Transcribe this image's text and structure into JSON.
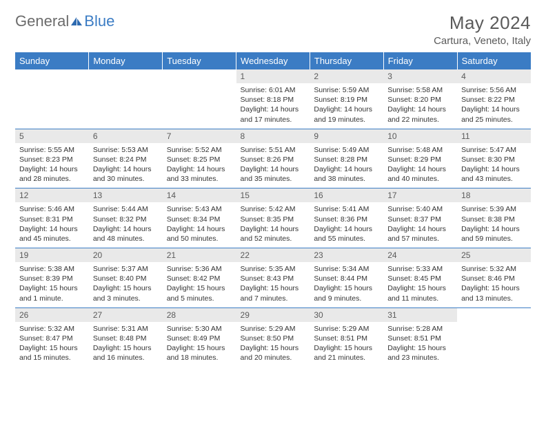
{
  "logo": {
    "text1": "General",
    "text2": "Blue"
  },
  "title": "May 2024",
  "location": "Cartura, Veneto, Italy",
  "colors": {
    "header_bg": "#3b7cc4",
    "daynum_bg": "#e9e9e9",
    "text": "#333333",
    "muted": "#5a5a5a",
    "rule": "#3b7cc4"
  },
  "weekdays": [
    "Sunday",
    "Monday",
    "Tuesday",
    "Wednesday",
    "Thursday",
    "Friday",
    "Saturday"
  ],
  "weeks": [
    [
      {
        "n": "",
        "lines": []
      },
      {
        "n": "",
        "lines": []
      },
      {
        "n": "",
        "lines": []
      },
      {
        "n": "1",
        "lines": [
          "Sunrise: 6:01 AM",
          "Sunset: 8:18 PM",
          "Daylight: 14 hours and 17 minutes."
        ]
      },
      {
        "n": "2",
        "lines": [
          "Sunrise: 5:59 AM",
          "Sunset: 8:19 PM",
          "Daylight: 14 hours and 19 minutes."
        ]
      },
      {
        "n": "3",
        "lines": [
          "Sunrise: 5:58 AM",
          "Sunset: 8:20 PM",
          "Daylight: 14 hours and 22 minutes."
        ]
      },
      {
        "n": "4",
        "lines": [
          "Sunrise: 5:56 AM",
          "Sunset: 8:22 PM",
          "Daylight: 14 hours and 25 minutes."
        ]
      }
    ],
    [
      {
        "n": "5",
        "lines": [
          "Sunrise: 5:55 AM",
          "Sunset: 8:23 PM",
          "Daylight: 14 hours and 28 minutes."
        ]
      },
      {
        "n": "6",
        "lines": [
          "Sunrise: 5:53 AM",
          "Sunset: 8:24 PM",
          "Daylight: 14 hours and 30 minutes."
        ]
      },
      {
        "n": "7",
        "lines": [
          "Sunrise: 5:52 AM",
          "Sunset: 8:25 PM",
          "Daylight: 14 hours and 33 minutes."
        ]
      },
      {
        "n": "8",
        "lines": [
          "Sunrise: 5:51 AM",
          "Sunset: 8:26 PM",
          "Daylight: 14 hours and 35 minutes."
        ]
      },
      {
        "n": "9",
        "lines": [
          "Sunrise: 5:49 AM",
          "Sunset: 8:28 PM",
          "Daylight: 14 hours and 38 minutes."
        ]
      },
      {
        "n": "10",
        "lines": [
          "Sunrise: 5:48 AM",
          "Sunset: 8:29 PM",
          "Daylight: 14 hours and 40 minutes."
        ]
      },
      {
        "n": "11",
        "lines": [
          "Sunrise: 5:47 AM",
          "Sunset: 8:30 PM",
          "Daylight: 14 hours and 43 minutes."
        ]
      }
    ],
    [
      {
        "n": "12",
        "lines": [
          "Sunrise: 5:46 AM",
          "Sunset: 8:31 PM",
          "Daylight: 14 hours and 45 minutes."
        ]
      },
      {
        "n": "13",
        "lines": [
          "Sunrise: 5:44 AM",
          "Sunset: 8:32 PM",
          "Daylight: 14 hours and 48 minutes."
        ]
      },
      {
        "n": "14",
        "lines": [
          "Sunrise: 5:43 AM",
          "Sunset: 8:34 PM",
          "Daylight: 14 hours and 50 minutes."
        ]
      },
      {
        "n": "15",
        "lines": [
          "Sunrise: 5:42 AM",
          "Sunset: 8:35 PM",
          "Daylight: 14 hours and 52 minutes."
        ]
      },
      {
        "n": "16",
        "lines": [
          "Sunrise: 5:41 AM",
          "Sunset: 8:36 PM",
          "Daylight: 14 hours and 55 minutes."
        ]
      },
      {
        "n": "17",
        "lines": [
          "Sunrise: 5:40 AM",
          "Sunset: 8:37 PM",
          "Daylight: 14 hours and 57 minutes."
        ]
      },
      {
        "n": "18",
        "lines": [
          "Sunrise: 5:39 AM",
          "Sunset: 8:38 PM",
          "Daylight: 14 hours and 59 minutes."
        ]
      }
    ],
    [
      {
        "n": "19",
        "lines": [
          "Sunrise: 5:38 AM",
          "Sunset: 8:39 PM",
          "Daylight: 15 hours and 1 minute."
        ]
      },
      {
        "n": "20",
        "lines": [
          "Sunrise: 5:37 AM",
          "Sunset: 8:40 PM",
          "Daylight: 15 hours and 3 minutes."
        ]
      },
      {
        "n": "21",
        "lines": [
          "Sunrise: 5:36 AM",
          "Sunset: 8:42 PM",
          "Daylight: 15 hours and 5 minutes."
        ]
      },
      {
        "n": "22",
        "lines": [
          "Sunrise: 5:35 AM",
          "Sunset: 8:43 PM",
          "Daylight: 15 hours and 7 minutes."
        ]
      },
      {
        "n": "23",
        "lines": [
          "Sunrise: 5:34 AM",
          "Sunset: 8:44 PM",
          "Daylight: 15 hours and 9 minutes."
        ]
      },
      {
        "n": "24",
        "lines": [
          "Sunrise: 5:33 AM",
          "Sunset: 8:45 PM",
          "Daylight: 15 hours and 11 minutes."
        ]
      },
      {
        "n": "25",
        "lines": [
          "Sunrise: 5:32 AM",
          "Sunset: 8:46 PM",
          "Daylight: 15 hours and 13 minutes."
        ]
      }
    ],
    [
      {
        "n": "26",
        "lines": [
          "Sunrise: 5:32 AM",
          "Sunset: 8:47 PM",
          "Daylight: 15 hours and 15 minutes."
        ]
      },
      {
        "n": "27",
        "lines": [
          "Sunrise: 5:31 AM",
          "Sunset: 8:48 PM",
          "Daylight: 15 hours and 16 minutes."
        ]
      },
      {
        "n": "28",
        "lines": [
          "Sunrise: 5:30 AM",
          "Sunset: 8:49 PM",
          "Daylight: 15 hours and 18 minutes."
        ]
      },
      {
        "n": "29",
        "lines": [
          "Sunrise: 5:29 AM",
          "Sunset: 8:50 PM",
          "Daylight: 15 hours and 20 minutes."
        ]
      },
      {
        "n": "30",
        "lines": [
          "Sunrise: 5:29 AM",
          "Sunset: 8:51 PM",
          "Daylight: 15 hours and 21 minutes."
        ]
      },
      {
        "n": "31",
        "lines": [
          "Sunrise: 5:28 AM",
          "Sunset: 8:51 PM",
          "Daylight: 15 hours and 23 minutes."
        ]
      },
      {
        "n": "",
        "lines": []
      }
    ]
  ]
}
